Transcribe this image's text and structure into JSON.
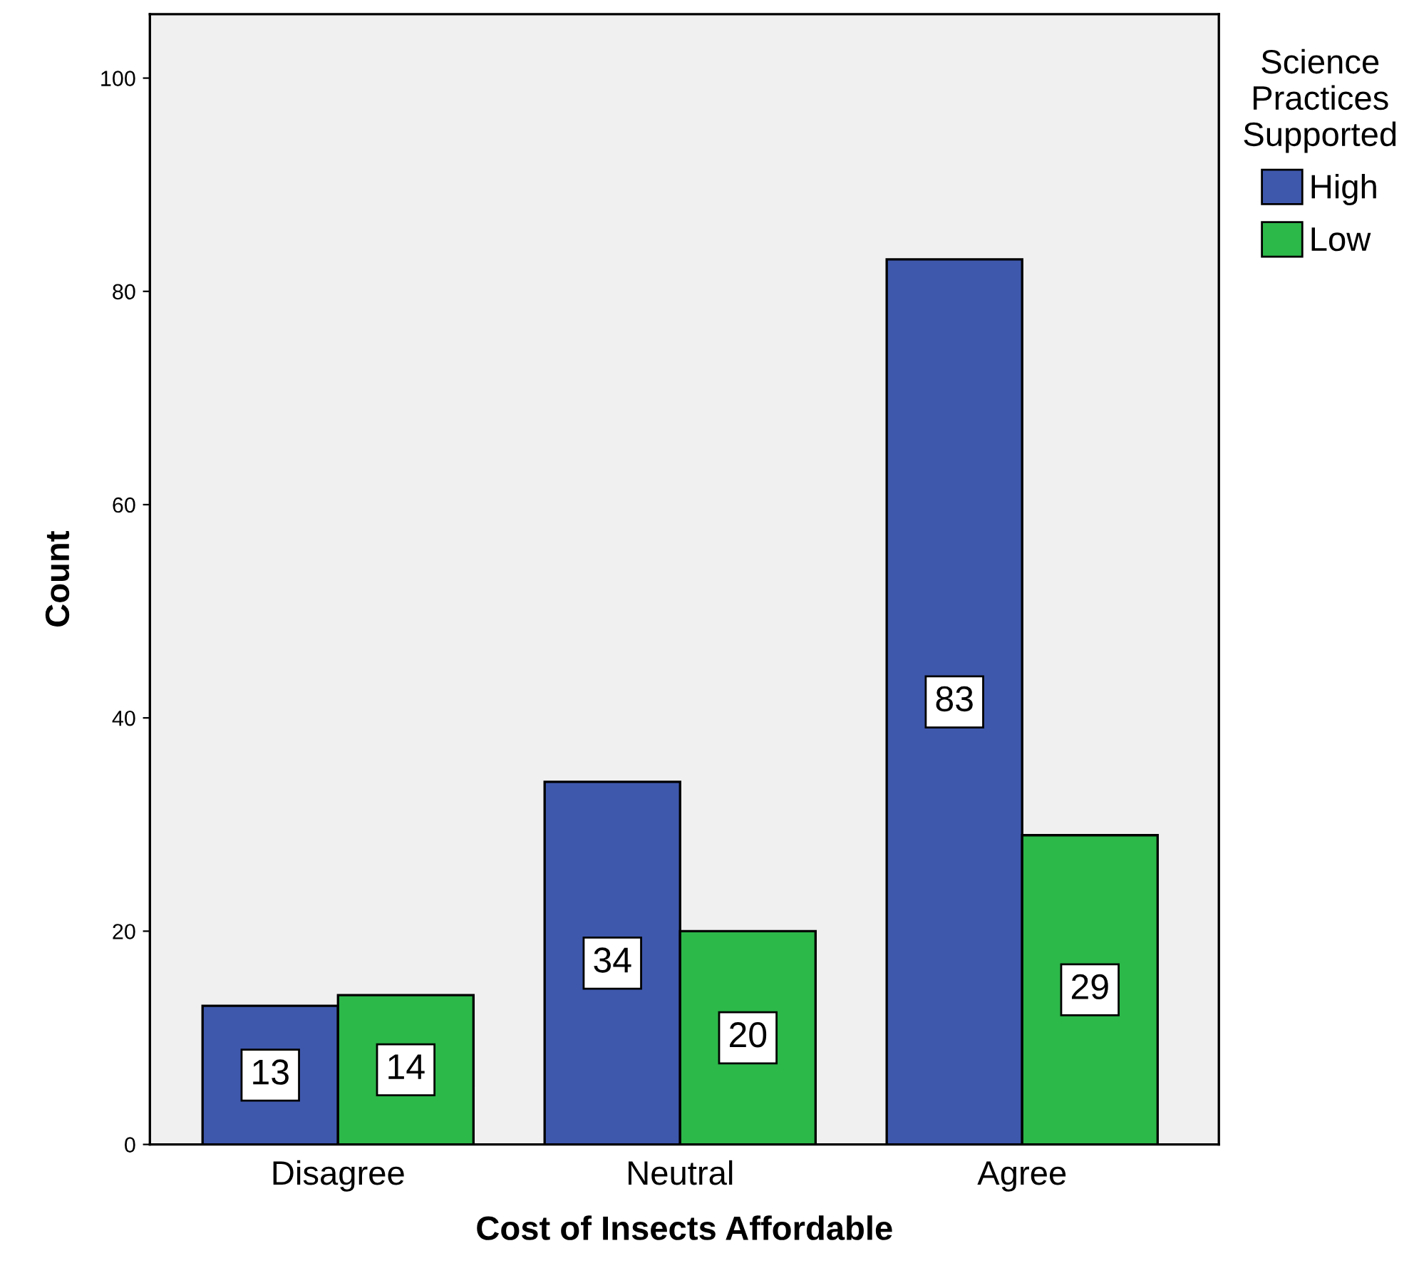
{
  "chart_data": {
    "type": "bar",
    "xlabel": "Cost of Insects Affordable",
    "ylabel": "Count",
    "legend_title": "Science\nPractices\nSupported",
    "categories": [
      "Disagree",
      "Neutral",
      "Agree"
    ],
    "series": [
      {
        "name": "High",
        "color": "#3e58ac",
        "values": [
          13,
          34,
          83
        ]
      },
      {
        "name": "Low",
        "color": "#2db84a",
        "values": [
          14,
          20,
          29
        ]
      }
    ],
    "ylim": [
      0,
      106
    ],
    "yticks": [
      0,
      20,
      40,
      60,
      80,
      100
    ],
    "grid": false,
    "legend": "top right",
    "data_labels": true
  }
}
